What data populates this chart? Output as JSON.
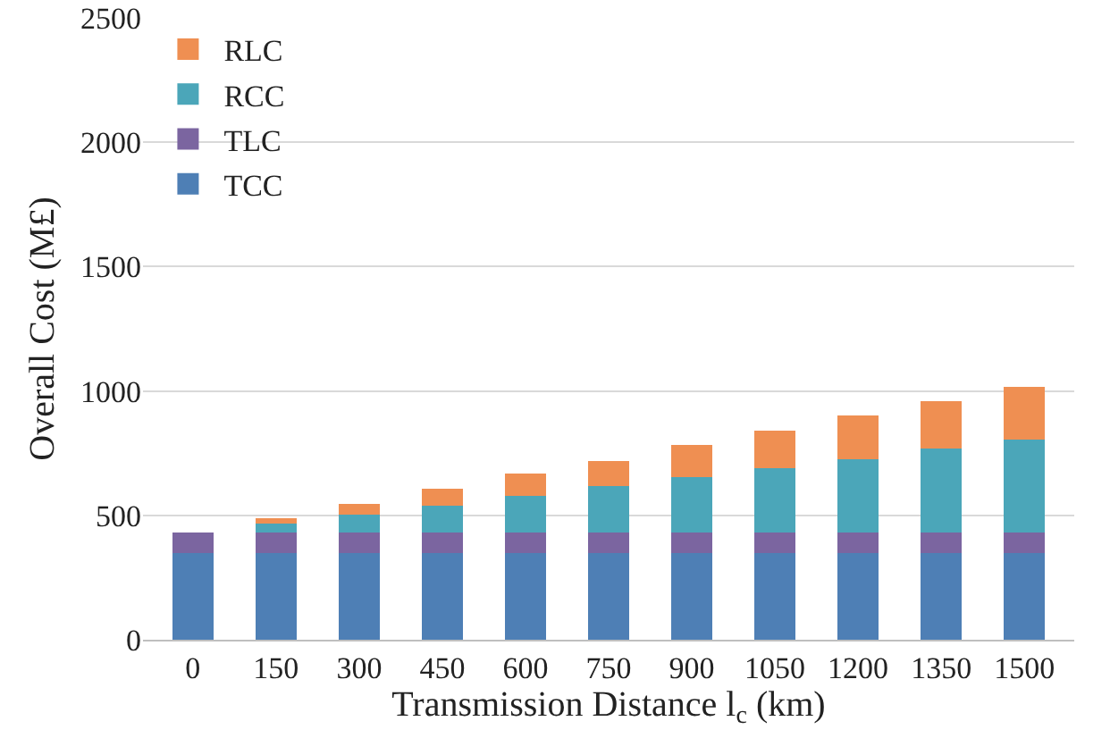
{
  "chart_data": {
    "type": "bar",
    "stacked": true,
    "xlabel": "Transmission Distance l$_{c}$ (km)",
    "ylabel": "Overall Cost (M£)",
    "categories": [
      "0",
      "150",
      "300",
      "450",
      "600",
      "750",
      "900",
      "1050",
      "1200",
      "1350",
      "1500"
    ],
    "series": [
      {
        "name": "TCC",
        "color": "#4e7fb5",
        "values": [
          350,
          350,
          350,
          350,
          350,
          350,
          350,
          350,
          350,
          350,
          350
        ]
      },
      {
        "name": "TLC",
        "color": "#7b65a0",
        "values": [
          80,
          80,
          80,
          80,
          80,
          80,
          80,
          80,
          80,
          80,
          80
        ]
      },
      {
        "name": "RCC",
        "color": "#4ba6b9",
        "values": [
          0,
          36,
          74,
          110,
          148,
          187,
          225,
          261,
          297,
          340,
          376
        ]
      },
      {
        "name": "RLC",
        "color": "#ef8f52",
        "values": [
          0,
          21,
          43,
          67,
          89,
          103,
          127,
          151,
          173,
          190,
          211
        ]
      }
    ],
    "ylim": [
      0,
      2500
    ],
    "yticks": [
      0,
      500,
      1000,
      1500,
      2000,
      2500
    ],
    "grid": "y",
    "legend": "top left"
  }
}
